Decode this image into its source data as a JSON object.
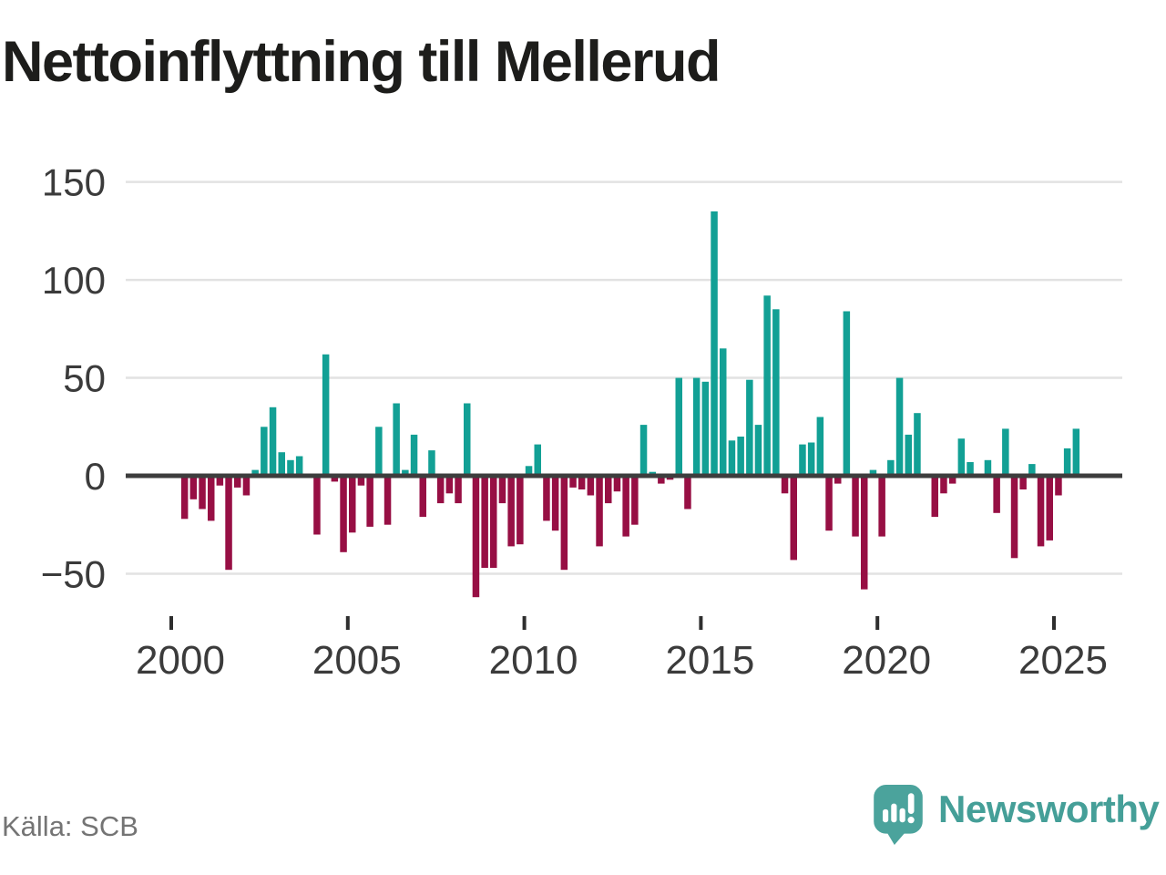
{
  "chart_data": {
    "type": "bar",
    "title": "Nettoinflyttning till Mellerud",
    "source": "Källa: SCB",
    "frequency": "quarterly",
    "start": {
      "year": 2000,
      "quarter": 1
    },
    "end": {
      "year": 2025,
      "quarter": 3
    },
    "values": [
      0,
      -22,
      -12,
      -17,
      -23,
      -5,
      -48,
      -6,
      -10,
      3,
      25,
      35,
      12,
      8,
      10,
      0,
      -30,
      62,
      -3,
      -39,
      -29,
      -5,
      -26,
      25,
      -25,
      37,
      3,
      21,
      -21,
      13,
      -14,
      -9,
      -14,
      37,
      -62,
      -47,
      -47,
      -14,
      -36,
      -35,
      5,
      16,
      -23,
      -28,
      -48,
      -6,
      -7,
      -10,
      -36,
      -14,
      -8,
      -31,
      -25,
      26,
      2,
      -4,
      -2,
      50,
      -17,
      50,
      48,
      135,
      65,
      18,
      20,
      49,
      26,
      92,
      85,
      -9,
      -43,
      16,
      17,
      30,
      -28,
      -4,
      84,
      -31,
      -58,
      3,
      -31,
      8,
      50,
      21,
      32,
      0,
      -21,
      -9,
      -4,
      19,
      7,
      0,
      8,
      -19,
      24,
      -42,
      -7,
      6,
      -36,
      -33,
      -10,
      14,
      24
    ],
    "y_ticks": [
      {
        "value": 150,
        "label": "150"
      },
      {
        "value": 100,
        "label": "100"
      },
      {
        "value": 50,
        "label": "50"
      },
      {
        "value": 0,
        "label": "0"
      },
      {
        "value": -50,
        "label": "−50"
      }
    ],
    "x_ticks": [
      {
        "year": 2000,
        "label": "2000"
      },
      {
        "year": 2005,
        "label": "2005"
      },
      {
        "year": 2010,
        "label": "2010"
      },
      {
        "year": 2015,
        "label": "2015"
      },
      {
        "year": 2020,
        "label": "2020"
      },
      {
        "year": 2025,
        "label": "2025"
      }
    ],
    "ylim": [
      -75,
      165
    ],
    "grid": "horizontal",
    "legend": "none",
    "colors": {
      "positive": "#12a095",
      "negative": "#970f44"
    }
  },
  "branding": {
    "wordmark": "Newsworthy",
    "color": "#4ba39c",
    "text_color": "#459f98"
  }
}
